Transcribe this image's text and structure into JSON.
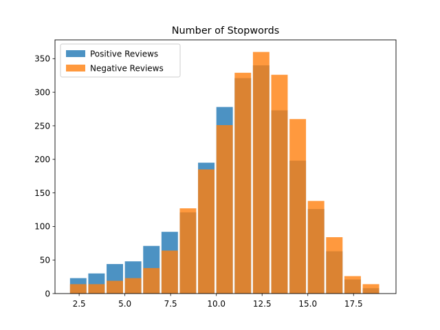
{
  "chart_data": {
    "type": "bar",
    "title": "Number of Stopwords",
    "xlabel": "",
    "ylabel": "",
    "xlim": [
      1.18,
      19.82
    ],
    "ylim": [
      0,
      378
    ],
    "x_ticks": [
      2.5,
      5.0,
      7.5,
      10.0,
      12.5,
      15.0,
      17.5
    ],
    "x_tick_labels": [
      "2.5",
      "5.0",
      "7.5",
      "10.0",
      "12.5",
      "15.0",
      "17.5"
    ],
    "y_ticks": [
      0,
      50,
      100,
      150,
      200,
      250,
      300,
      350
    ],
    "y_tick_labels": [
      "0",
      "50",
      "100",
      "150",
      "200",
      "250",
      "300",
      "350"
    ],
    "bin_edges": [
      2.0,
      3.0,
      4.0,
      5.0,
      6.0,
      7.0,
      8.0,
      9.0,
      10.0,
      11.0,
      12.0,
      13.0,
      14.0,
      15.0,
      16.0,
      17.0,
      18.0,
      19.0
    ],
    "bar_width_fraction": 0.9,
    "series": [
      {
        "name": "Positive Reviews",
        "color": "#1f77b4",
        "alpha": 0.8,
        "values": [
          23,
          30,
          44,
          48,
          71,
          92,
          121,
          195,
          278,
          321,
          340,
          273,
          198,
          126,
          63,
          21,
          8
        ]
      },
      {
        "name": "Negative Reviews",
        "color": "#ff7f0e",
        "alpha": 0.8,
        "values": [
          14,
          14,
          19,
          23,
          38,
          64,
          127,
          185,
          251,
          329,
          360,
          326,
          260,
          138,
          84,
          26,
          14
        ]
      }
    ],
    "legend_position": "top-left",
    "grid": false
  }
}
